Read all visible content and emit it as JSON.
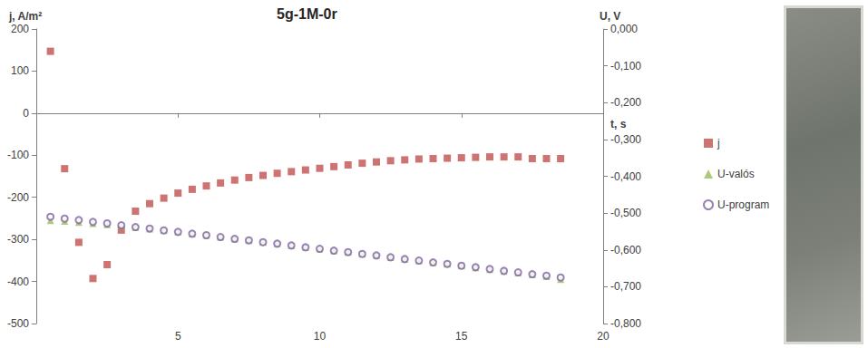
{
  "chart_data": {
    "type": "scatter",
    "title": "5g-1M-0r",
    "x_label": "t, s",
    "y_label": "j, A/m²",
    "y2_label": "U, V",
    "x": [
      0.5,
      1.0,
      1.5,
      2.0,
      2.5,
      3.0,
      3.5,
      4.0,
      4.5,
      5.0,
      5.5,
      6.0,
      6.5,
      7.0,
      7.5,
      8.0,
      8.5,
      9.0,
      9.5,
      10.0,
      10.5,
      11.0,
      11.5,
      12.0,
      12.5,
      13.0,
      13.5,
      14.0,
      14.5,
      15.0,
      15.5,
      16.0,
      16.5,
      17.0,
      17.5,
      18.0,
      18.5
    ],
    "series": [
      {
        "name": "j",
        "color": "#c0504d",
        "marker": "square",
        "values": [
          147,
          -132,
          -307,
          -393,
          -360,
          -278,
          -233,
          -215,
          -202,
          -190,
          -181,
          -173,
          -166,
          -159,
          -153,
          -148,
          -143,
          -139,
          -135,
          -131,
          -127,
          -123,
          -119,
          -116,
          -113,
          -111,
          -109,
          -108,
          -107,
          -106,
          -105,
          -104,
          -104,
          -104,
          -108,
          -108,
          -108
        ]
      },
      {
        "name": "U-valós",
        "color": "#9bbb59",
        "marker": "triangle",
        "axis": "y2",
        "values": [
          -0.52,
          -0.522,
          -0.525,
          -0.528,
          -0.531,
          -0.535,
          -0.539,
          -0.543,
          -0.547,
          -0.551,
          -0.556,
          -0.56,
          -0.565,
          -0.57,
          -0.574,
          -0.579,
          -0.583,
          -0.588,
          -0.593,
          -0.597,
          -0.602,
          -0.606,
          -0.611,
          -0.615,
          -0.62,
          -0.625,
          -0.629,
          -0.634,
          -0.638,
          -0.643,
          -0.648,
          -0.653,
          -0.658,
          -0.662,
          -0.667,
          -0.672,
          -0.68
        ]
      },
      {
        "name": "U-program",
        "color": "#8064a2",
        "marker": "open_circle",
        "axis": "y2",
        "values": [
          -0.51,
          -0.515,
          -0.519,
          -0.524,
          -0.528,
          -0.533,
          -0.538,
          -0.542,
          -0.547,
          -0.551,
          -0.556,
          -0.56,
          -0.565,
          -0.57,
          -0.574,
          -0.579,
          -0.583,
          -0.588,
          -0.593,
          -0.597,
          -0.602,
          -0.606,
          -0.611,
          -0.615,
          -0.62,
          -0.625,
          -0.629,
          -0.634,
          -0.638,
          -0.643,
          -0.647,
          -0.652,
          -0.657,
          -0.661,
          -0.666,
          -0.67,
          -0.675
        ]
      }
    ],
    "xlim": [
      0,
      20
    ],
    "xticks": [
      5,
      10,
      15,
      20
    ],
    "ylim": [
      -500,
      200
    ],
    "yticks": [
      -500,
      -400,
      -300,
      -200,
      -100,
      0,
      100,
      200
    ],
    "y2lim": [
      -0.8,
      0
    ],
    "y2ticks": [
      {
        "value": -0.8,
        "label": "-0,800"
      },
      {
        "value": -0.7,
        "label": "-0,700"
      },
      {
        "value": -0.6,
        "label": "-0,600"
      },
      {
        "value": -0.5,
        "label": "-0,500"
      },
      {
        "value": -0.4,
        "label": "-0,400"
      },
      {
        "value": -0.3,
        "label": "-0,300"
      },
      {
        "value": -0.2,
        "label": "-0,200"
      },
      {
        "value": -0.1,
        "label": "-0,100"
      },
      {
        "value": 0,
        "label": "0,000"
      }
    ],
    "grid": false,
    "legend": "right"
  }
}
